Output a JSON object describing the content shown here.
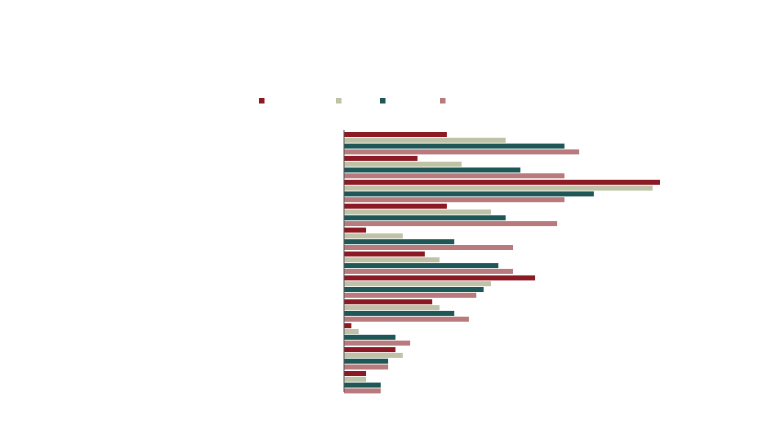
{
  "chart_data": {
    "type": "bar",
    "orientation": "horizontal",
    "title": "",
    "xlabel": "",
    "ylabel": "",
    "grid": false,
    "legend_placement": "top",
    "categories": [
      "",
      "",
      "",
      "",
      "",
      "",
      "",
      "",
      "",
      "",
      ""
    ],
    "xlim": [
      0,
      43
    ],
    "series": [
      {
        "color": "#8B1A24",
        "values": [
          14,
          10,
          43,
          14,
          3,
          11,
          26,
          12,
          1,
          7,
          3
        ]
      },
      {
        "color": "#BEC3A8",
        "values": [
          22,
          16,
          42,
          20,
          8,
          13,
          20,
          13,
          2,
          8,
          3
        ]
      },
      {
        "color": "#1F5656",
        "values": [
          30,
          24,
          34,
          22,
          15,
          21,
          19,
          15,
          7,
          6,
          5
        ]
      },
      {
        "color": "#B87A7D",
        "values": [
          32,
          30,
          30,
          29,
          23,
          23,
          18,
          17,
          9,
          6,
          5
        ]
      }
    ]
  }
}
